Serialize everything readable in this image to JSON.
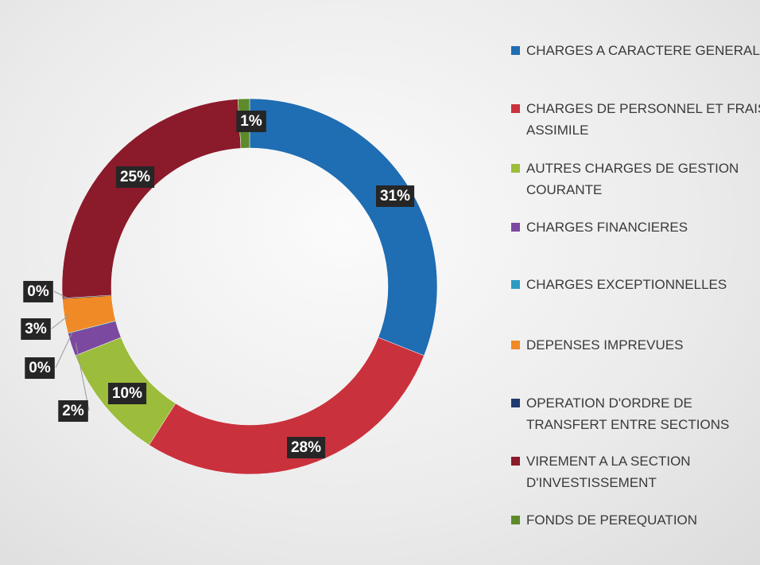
{
  "chart_data": {
    "type": "donut",
    "categories": [
      "CHARGES A CARACTERE GENERAL",
      "CHARGES DE PERSONNEL ET FRAIS ASSIMILE",
      "AUTRES CHARGES DE GESTION COURANTE",
      "CHARGES FINANCIERES",
      "CHARGES EXCEPTIONNELLES",
      "DEPENSES IMPREVUES",
      "OPERATION D'ORDRE DE TRANSFERT ENTRE SECTIONS",
      "VIREMENT A LA SECTION D'INVESTISSEMENT",
      "FONDS DE PEREQUATION"
    ],
    "values": [
      31,
      28,
      10,
      2,
      0,
      3,
      0,
      25,
      1
    ],
    "value_labels": [
      "31%",
      "28%",
      "10%",
      "2%",
      "0%",
      "3%",
      "0%",
      "25%",
      "1%"
    ],
    "colors": [
      "#1f6db3",
      "#c9323d",
      "#9cbc3b",
      "#7b4aa0",
      "#2b9bc2",
      "#f08a26",
      "#1f3a6e",
      "#8b1a2b",
      "#5d8a2a"
    ],
    "legend": "right"
  }
}
